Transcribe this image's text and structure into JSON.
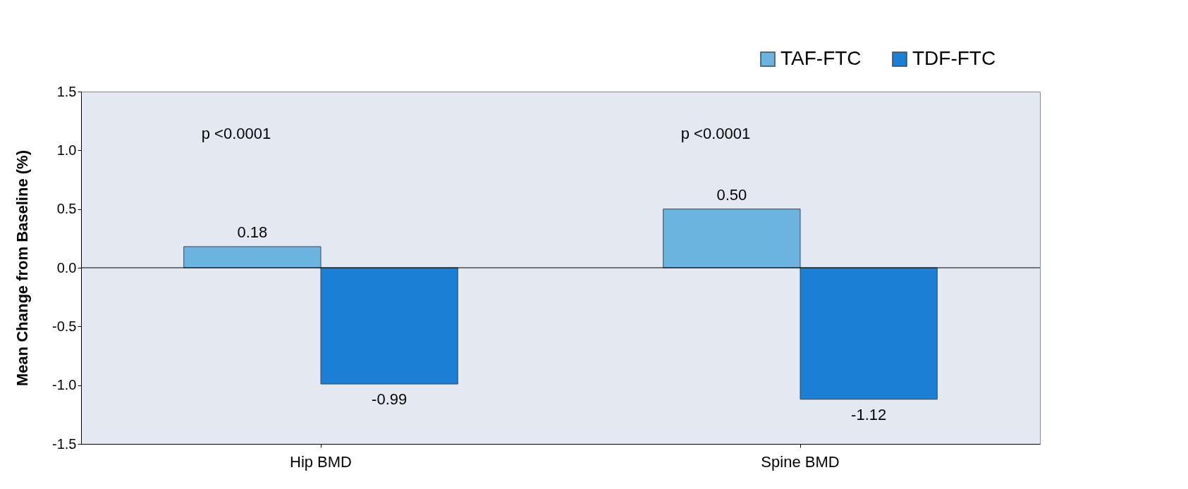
{
  "chart_data": {
    "type": "bar",
    "ylabel": "Mean Change from Baseline (%)",
    "categories": [
      "Hip BMD",
      "Spine BMD"
    ],
    "series": [
      {
        "name": "TAF-FTC",
        "color": "#6cb4e0",
        "values": [
          0.18,
          0.5
        ],
        "value_labels": [
          "0.18",
          "0.50"
        ]
      },
      {
        "name": "TDF-FTC",
        "color": "#1b7fd6",
        "values": [
          -0.99,
          -1.12
        ],
        "value_labels": [
          "-0.99",
          "-1.12"
        ]
      }
    ],
    "ylim": [
      -1.5,
      1.5
    ],
    "yticks": [
      -1.5,
      {
        "value": -1,
        "label": "-1.0"
      },
      -0.5,
      {
        "value": 0,
        "label": "0.0"
      },
      0.5,
      {
        "value": 1,
        "label": "1.0"
      },
      1.5
    ],
    "annotations": [
      "p <0.0001",
      "p <0.0001"
    ],
    "ref_lines": [
      {
        "axis": "y",
        "value": 0,
        "color": "#000000"
      }
    ],
    "grid": false,
    "legend": "top right"
  }
}
